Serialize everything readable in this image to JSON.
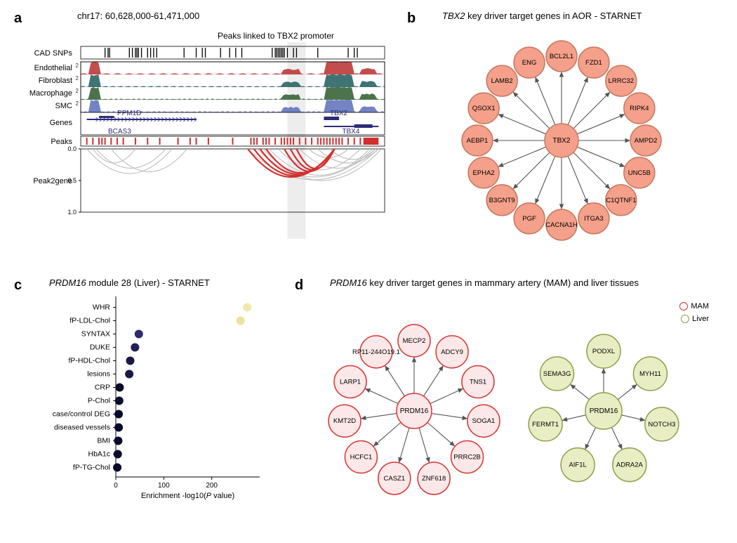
{
  "panel_a": {
    "label": "a",
    "coord_title": "chr17: 60,628,000-61,471,000",
    "highlight_label": "Peaks linked to TBX2 promoter",
    "tracks": [
      {
        "name": "CAD SNPs",
        "color": "#000000",
        "type": "ticks"
      },
      {
        "name": "Endothelial",
        "color": "#b82d2d",
        "scale_max": 2,
        "type": "signal"
      },
      {
        "name": "Fibroblast",
        "color": "#1f5c5c",
        "scale_max": 2,
        "type": "signal"
      },
      {
        "name": "Macrophage",
        "color": "#2d5c2d",
        "scale_max": 2,
        "type": "signal"
      },
      {
        "name": "SMC",
        "color": "#5a6db8",
        "scale_max": 2,
        "type": "signal"
      },
      {
        "name": "Genes",
        "color": "#2c2c7a",
        "type": "gene"
      },
      {
        "name": "Peaks",
        "color": "#d32f2f",
        "type": "peaks"
      },
      {
        "name": "Peak2gene",
        "color": "#d32f2f",
        "type": "arcs"
      }
    ],
    "genes": [
      {
        "name": "PPM1D",
        "x": 0.12
      },
      {
        "name": "BCAS3",
        "x": 0.09
      },
      {
        "name": "TBX2",
        "x": 0.82
      },
      {
        "name": "TBX4",
        "x": 0.86
      }
    ],
    "arc_yticks": [
      "0.0",
      "0.5",
      "1.0"
    ],
    "highlight_x": 0.68,
    "highlight_w": 0.06,
    "snp_positions": [
      0.08,
      0.09,
      0.095,
      0.16,
      0.17,
      0.18,
      0.185,
      0.19,
      0.2,
      0.22,
      0.23,
      0.24,
      0.25,
      0.34,
      0.38,
      0.4,
      0.41,
      0.46,
      0.49,
      0.51,
      0.53,
      0.63,
      0.64,
      0.645,
      0.65,
      0.655,
      0.66,
      0.665,
      0.67,
      0.68,
      0.7,
      0.71,
      0.78,
      0.88,
      0.9,
      0.91
    ],
    "peak_positions": [
      0.02,
      0.04,
      0.06,
      0.07,
      0.08,
      0.1,
      0.12,
      0.14,
      0.18,
      0.22,
      0.26,
      0.32,
      0.36,
      0.38,
      0.42,
      0.5,
      0.56,
      0.57,
      0.58,
      0.6,
      0.61,
      0.62,
      0.64,
      0.66,
      0.67,
      0.68,
      0.69,
      0.7,
      0.72,
      0.74,
      0.76,
      0.78,
      0.79,
      0.8,
      0.81,
      0.82,
      0.83,
      0.84,
      0.85,
      0.86,
      0.88,
      0.9,
      0.92,
      0.94,
      0.95,
      0.96,
      0.97
    ]
  },
  "panel_b": {
    "label": "b",
    "title": "TBX2 key driver target genes in AOR - STARNET",
    "title_italic_gene": "TBX2",
    "node_color": "#f4a08a",
    "node_border": "#c67860",
    "center": "TBX2",
    "node_size": 44,
    "center_size": 48,
    "targets": [
      "BCL2L1",
      "FZD1",
      "LRRC32",
      "RIPK4",
      "AMPD2",
      "UNC5B",
      "C1QTNF1",
      "ITGA3",
      "CACNA1H",
      "PGF",
      "B3GNT9",
      "EPHA2",
      "AEBP1",
      "QSOX1",
      "LAMB2",
      "ENG"
    ]
  },
  "panel_c": {
    "label": "c",
    "title": "PRDM16 module 28 (Liver) - STARNET",
    "title_italic_gene": "PRDM16",
    "xlabel": "Enrichment -log10(P value)",
    "xlabel_italic": "P",
    "xlim": [
      0,
      300
    ],
    "xticks": [
      0,
      100,
      200
    ],
    "color_low": "#0a0a2a",
    "color_high": "#f2e8a8",
    "rows": [
      {
        "label": "WHR",
        "value": 274,
        "color": "#f2e8a8"
      },
      {
        "label": "fP-LDL-Chol",
        "value": 260,
        "color": "#ede29e"
      },
      {
        "label": "SYNTAX",
        "value": 48,
        "color": "#2e2a6e"
      },
      {
        "label": "DUKE",
        "value": 40,
        "color": "#232056"
      },
      {
        "label": "fP-HDL-Chol",
        "value": 30,
        "color": "#1a1844"
      },
      {
        "label": "lesions",
        "value": 28,
        "color": "#1a1844"
      },
      {
        "label": "CRP",
        "value": 8,
        "color": "#0a0a2a"
      },
      {
        "label": "P-Chol",
        "value": 7,
        "color": "#0a0a2a"
      },
      {
        "label": "case/control DEG",
        "value": 6,
        "color": "#0a0a2a"
      },
      {
        "label": "diseased vessels",
        "value": 6,
        "color": "#0a0a2a"
      },
      {
        "label": "BMI",
        "value": 5,
        "color": "#0a0a2a"
      },
      {
        "label": "HbA1c",
        "value": 4,
        "color": "#0a0a2a"
      },
      {
        "label": "fP-TG-Chol",
        "value": 3,
        "color": "#0a0a2a"
      }
    ]
  },
  "panel_d": {
    "label": "d",
    "title": "PRDM16 key driver target genes in mammary artery (MAM) and liver tissues",
    "title_italic_gene": "PRDM16",
    "legend": [
      {
        "label": "MAM",
        "border": "#d93636",
        "fill": "#fce8e8"
      },
      {
        "label": "Liver",
        "border": "#8aa048",
        "fill": "#e9edc4"
      }
    ],
    "networks": [
      {
        "center": "PRDM16",
        "fill": "#fce8e8",
        "border": "#d93636",
        "node_size": 46,
        "center_size": 50,
        "targets": [
          "MECP2",
          "ADCY9",
          "TNS1",
          "SOGA1",
          "PRRC2B",
          "ZNF618",
          "CASZ1",
          "HCFC1",
          "KMT2D",
          "LARP1",
          "RP11-244O19.1"
        ]
      },
      {
        "center": "PRDM16",
        "fill": "#e9edc4",
        "border": "#8aa048",
        "node_size": 48,
        "center_size": 52,
        "targets": [
          "PODXL",
          "MYH11",
          "NOTCH3",
          "ADRA2A",
          "AIF1L",
          "FERMT1",
          "SEMA3G"
        ]
      }
    ]
  }
}
